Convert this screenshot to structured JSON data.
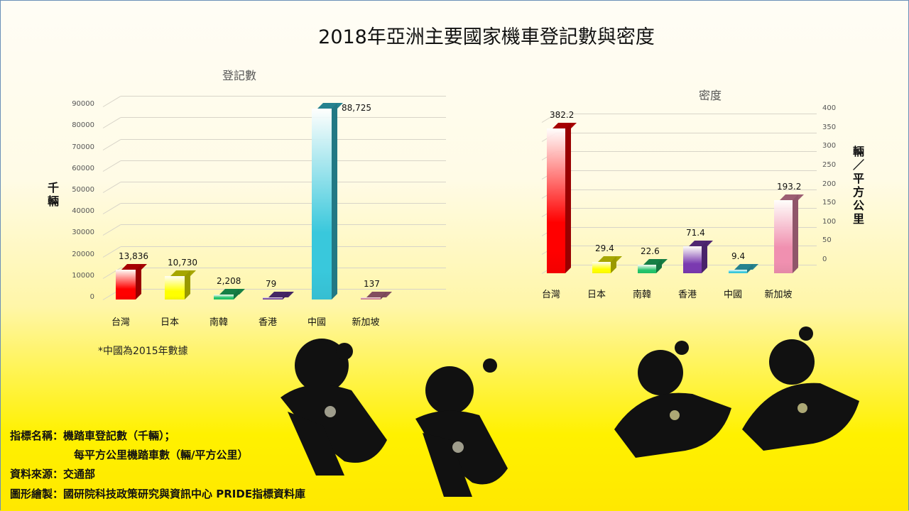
{
  "title": "2018年亞洲主要國家機車登記數與密度",
  "note": "*中國為2015年數據",
  "info": {
    "indicator_label": "指標名稱：",
    "indicator_line1": "機踏車登記數（千輛）；",
    "indicator_line2": "每平方公里機踏車數（輛/平方公里）",
    "source_label": "資料來源：",
    "source": "交通部",
    "maker_label": "圖形繪製：",
    "maker": "國研院科技政策研究與資訊中心 PRIDE指標資料庫"
  },
  "chart_data": [
    {
      "type": "bar",
      "title": "登記數",
      "ylabel": "千輛",
      "xlabel": "",
      "categories": [
        "台灣",
        "日本",
        "南韓",
        "香港",
        "中國",
        "新加坡"
      ],
      "values": [
        13836,
        10730,
        2208,
        79,
        88725,
        137
      ],
      "data_labels": [
        "13,836",
        "10,730",
        "2,208",
        "79",
        "88,725",
        "137"
      ],
      "ylim": [
        0,
        90000
      ],
      "yticks": [
        "0",
        "10000",
        "20000",
        "30000",
        "40000",
        "50000",
        "60000",
        "70000",
        "80000",
        "90000"
      ],
      "axis_side": "left",
      "grid": true,
      "colors": [
        "#ff0000",
        "#ffff00",
        "#22c36a",
        "#6a3a9a",
        "#39c8dc",
        "#c87890"
      ]
    },
    {
      "type": "bar",
      "title": "密度",
      "ylabel": "輛/平方公里",
      "xlabel": "",
      "categories": [
        "台灣",
        "日本",
        "南韓",
        "香港",
        "中國",
        "新加坡"
      ],
      "values": [
        382.2,
        29.4,
        22.6,
        71.4,
        9.4,
        193.2
      ],
      "data_labels": [
        "382.2",
        "29.4",
        "22.6",
        "71.4",
        "9.4",
        "193.2"
      ],
      "ylim": [
        0,
        400
      ],
      "yticks": [
        "0",
        "50",
        "100",
        "150",
        "200",
        "250",
        "300",
        "350",
        "400"
      ],
      "axis_side": "right",
      "grid": true,
      "colors": [
        "#ff0000",
        "#ffff00",
        "#22c36a",
        "#7a3ab0",
        "#39c8dc",
        "#f090b0"
      ]
    }
  ]
}
